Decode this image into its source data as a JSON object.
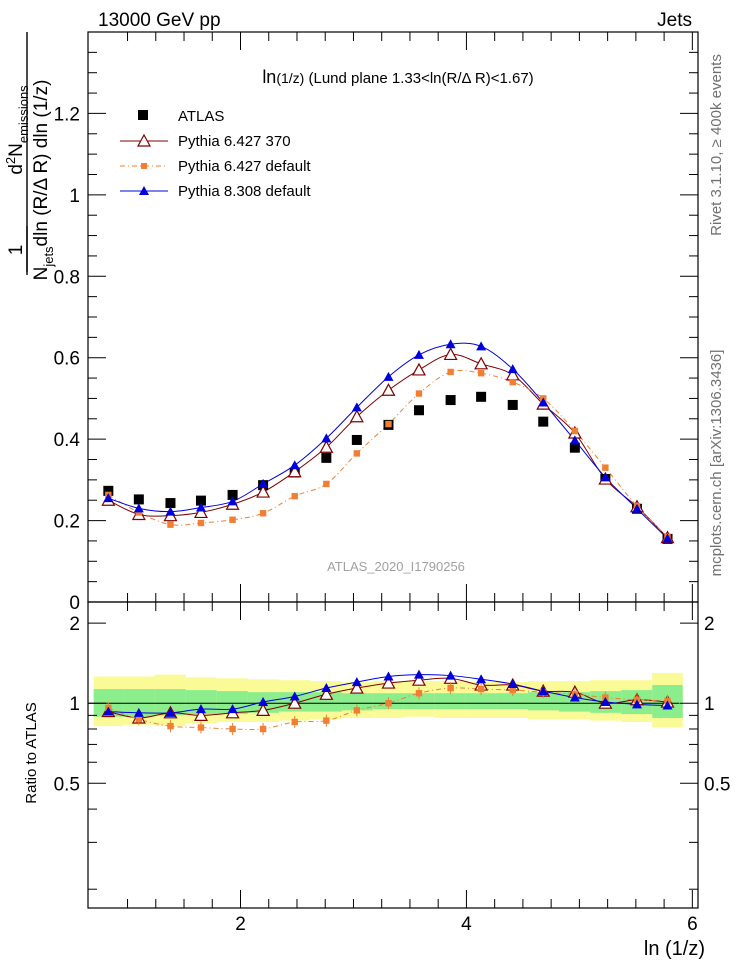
{
  "header": {
    "left": "13000 GeV pp",
    "right": "Jets"
  },
  "side_labels": {
    "rivet": "Rivet 3.1.10, ≥ 400k events",
    "mcplots": "mcplots.cern.ch [arXiv:1306.3436]"
  },
  "watermark": "ATLAS_2020_I1790256",
  "chart_data": [
    {
      "type": "scatter",
      "panel": "main",
      "title_main": "ln",
      "title_arg": "(1/z)",
      "title_rest": " (Lund plane 1.33<ln(R/Δ R)<1.67)",
      "ylabel": {
        "one": "1",
        "N": "N",
        "jets_sub": "jets",
        "den_rest": "dln (R/Δ R) dln (1/z)",
        "d": "d",
        "sup2": "2",
        "emis_sub": "emissions"
      },
      "xlim": [
        0.65,
        6.05
      ],
      "ylim": [
        0,
        1.4
      ],
      "y_ticks": [
        0,
        0.2,
        0.4,
        0.6,
        0.8,
        1,
        1.2
      ],
      "y_tick_labels": [
        "0",
        "0.2",
        "0.4",
        "0.6",
        "0.8",
        "1",
        "1.2"
      ],
      "x": [
        0.83,
        1.1,
        1.38,
        1.65,
        1.93,
        2.2,
        2.48,
        2.76,
        3.03,
        3.31,
        3.58,
        3.86,
        4.13,
        4.41,
        4.68,
        4.96,
        5.23,
        5.51,
        5.78
      ],
      "series": [
        {
          "name": "ATLAS",
          "color": "#000000",
          "marker": "square",
          "values": [
            0.273,
            0.252,
            0.243,
            0.249,
            0.263,
            0.287,
            0.318,
            0.354,
            0.398,
            0.435,
            0.471,
            0.496,
            0.504,
            0.484,
            0.443,
            0.379,
            0.302,
            0.229,
            0.155
          ]
        },
        {
          "name": "Pythia 6.427 370",
          "color": "#800000",
          "marker": "open-triangle",
          "values": [
            0.25,
            0.215,
            0.212,
            0.22,
            0.24,
            0.27,
            0.32,
            0.38,
            0.455,
            0.52,
            0.57,
            0.608,
            0.585,
            0.558,
            0.486,
            0.415,
            0.302,
            0.234,
            0.158
          ]
        },
        {
          "name": "Pythia 6.427 default",
          "color": "#f07f33",
          "marker": "small-square",
          "values": [
            0.263,
            0.22,
            0.19,
            0.194,
            0.202,
            0.218,
            0.26,
            0.29,
            0.365,
            0.437,
            0.512,
            0.565,
            0.562,
            0.54,
            0.5,
            0.42,
            0.33,
            0.235,
            0.16
          ]
        },
        {
          "name": "Pythia 8.308 default",
          "color": "#0000dd",
          "marker": "triangle",
          "values": [
            0.255,
            0.23,
            0.222,
            0.232,
            0.247,
            0.29,
            0.336,
            0.402,
            0.478,
            0.553,
            0.607,
            0.633,
            0.628,
            0.572,
            0.49,
            0.397,
            0.306,
            0.229,
            0.156
          ]
        }
      ]
    },
    {
      "type": "scatter",
      "panel": "ratio",
      "ylabel": "Ratio to ATLAS",
      "xlabel": "ln (1/z)",
      "xlim": [
        0.65,
        6.05
      ],
      "ylim": [
        0.17,
        2.4
      ],
      "ylog": true,
      "x_ticks": [
        2,
        4,
        6
      ],
      "x_tick_labels": [
        "2",
        "4",
        "6"
      ],
      "y_ticks": [
        0.5,
        1,
        2
      ],
      "y_tick_labels": [
        "0.5",
        "1",
        "2"
      ],
      "x": [
        0.83,
        1.1,
        1.38,
        1.65,
        1.93,
        2.2,
        2.48,
        2.76,
        3.03,
        3.31,
        3.58,
        3.86,
        4.13,
        4.41,
        4.68,
        4.96,
        5.23,
        5.51,
        5.78
      ],
      "bands": {
        "yellow_lo": [
          0.82,
          0.83,
          0.82,
          0.84,
          0.85,
          0.85,
          0.86,
          0.87,
          0.88,
          0.88,
          0.89,
          0.88,
          0.88,
          0.88,
          0.87,
          0.87,
          0.86,
          0.85,
          0.81
        ],
        "yellow_hi": [
          1.26,
          1.26,
          1.28,
          1.25,
          1.24,
          1.23,
          1.22,
          1.21,
          1.2,
          1.21,
          1.21,
          1.21,
          1.2,
          1.2,
          1.21,
          1.21,
          1.22,
          1.22,
          1.3
        ],
        "green_lo": [
          0.89,
          0.89,
          0.9,
          0.91,
          0.91,
          0.92,
          0.93,
          0.93,
          0.94,
          0.95,
          0.95,
          0.95,
          0.95,
          0.95,
          0.94,
          0.93,
          0.92,
          0.91,
          0.88
        ],
        "green_hi": [
          1.13,
          1.13,
          1.13,
          1.12,
          1.11,
          1.1,
          1.1,
          1.1,
          1.09,
          1.09,
          1.09,
          1.09,
          1.09,
          1.09,
          1.1,
          1.1,
          1.11,
          1.12,
          1.17
        ],
        "yellow_color": "#fafa96",
        "green_color": "#8ced8c"
      },
      "series": [
        {
          "name": "Pythia 6.427 370",
          "color": "#800000",
          "marker": "open-triangle",
          "values": [
            0.93,
            0.88,
            0.92,
            0.9,
            0.92,
            0.94,
            1.0,
            1.08,
            1.14,
            1.19,
            1.22,
            1.24,
            1.17,
            1.17,
            1.11,
            1.1,
            1.0,
            1.03,
            1.01
          ]
        },
        {
          "name": "Pythia 6.427 default",
          "color": "#f07f33",
          "marker": "small-square",
          "values": [
            0.96,
            0.87,
            0.82,
            0.81,
            0.8,
            0.8,
            0.85,
            0.86,
            0.94,
            1.0,
            1.09,
            1.14,
            1.13,
            1.12,
            1.1,
            1.08,
            1.05,
            1.03,
            1.02
          ]
        },
        {
          "name": "Pythia 8.308 default",
          "color": "#0000dd",
          "marker": "triangle",
          "values": [
            0.93,
            0.92,
            0.92,
            0.95,
            0.95,
            1.01,
            1.06,
            1.14,
            1.2,
            1.26,
            1.28,
            1.27,
            1.23,
            1.18,
            1.11,
            1.05,
            1.01,
            0.99,
            0.98
          ]
        }
      ]
    }
  ]
}
